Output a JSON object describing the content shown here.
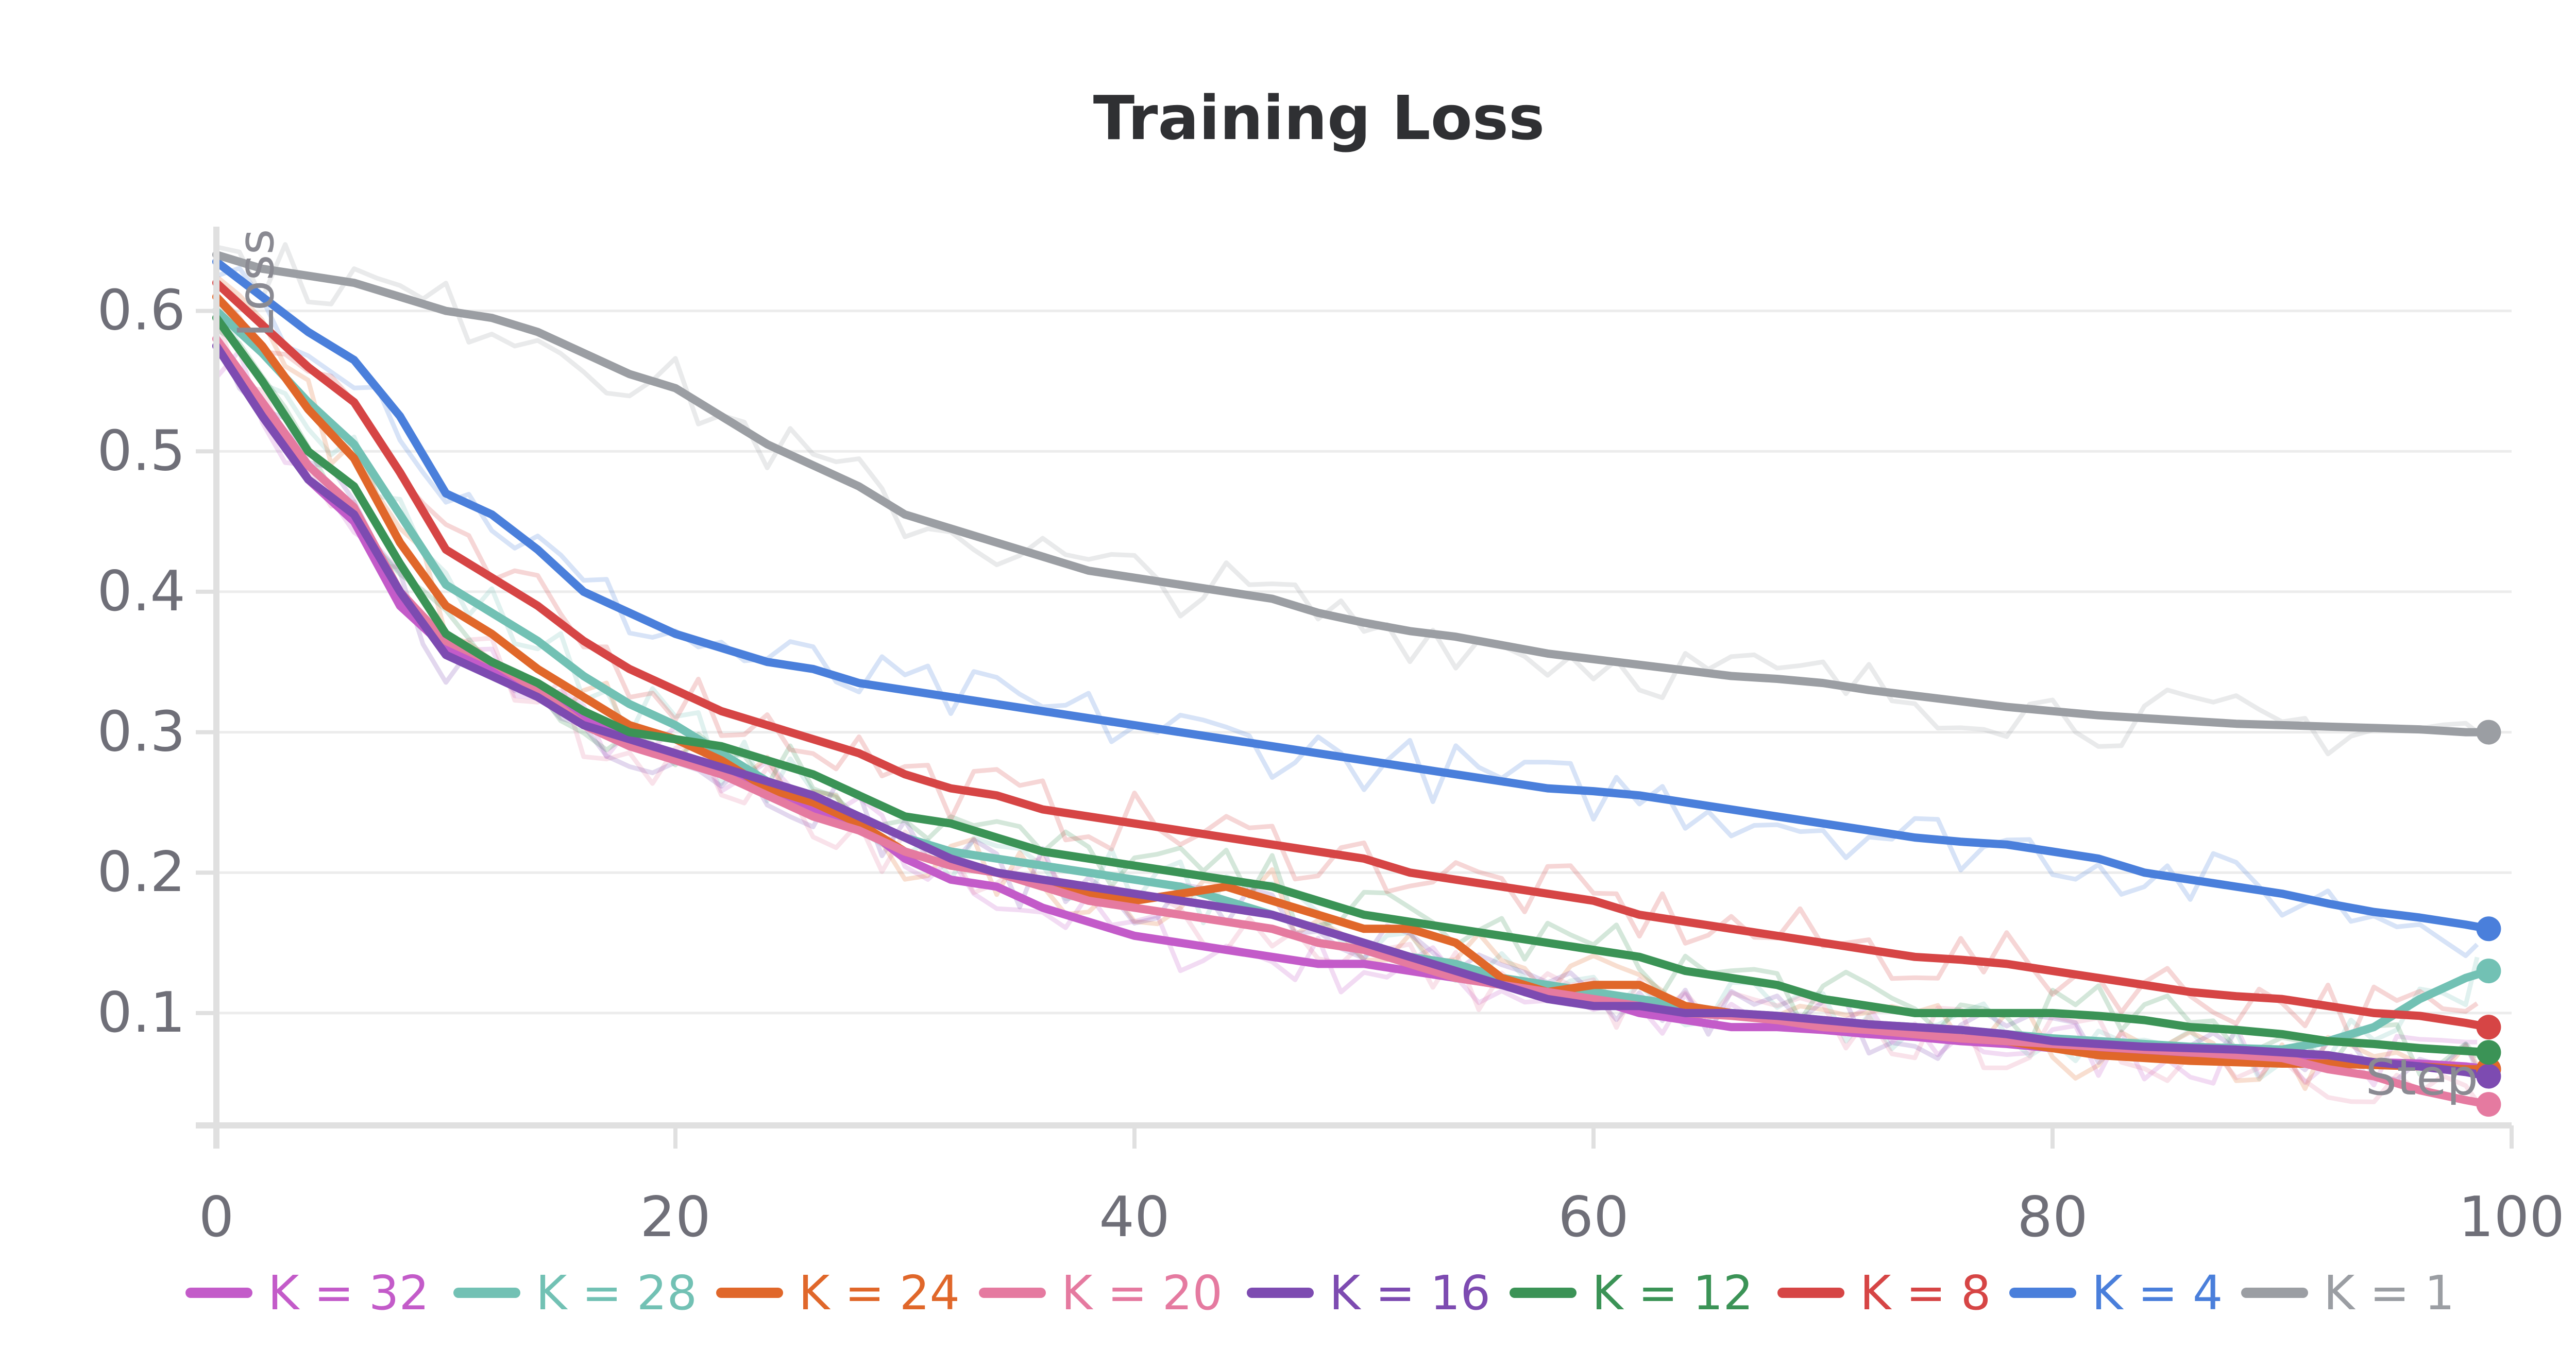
{
  "chart_data": {
    "type": "line",
    "title": "Training Loss",
    "xlabel": "Step",
    "ylabel": "Loss",
    "xlim": [
      0,
      100
    ],
    "ylim": [
      0.02,
      0.66
    ],
    "xticks": [
      0,
      20,
      40,
      60,
      80,
      100
    ],
    "yticks": [
      0.1,
      0.2,
      0.3,
      0.4,
      0.5,
      0.6
    ],
    "grid": true,
    "legend_position": "bottom",
    "series": [
      {
        "name": "K = 32",
        "color": "#c35bc9",
        "x": [
          0,
          2,
          4,
          6,
          8,
          10,
          12,
          14,
          16,
          18,
          20,
          22,
          24,
          26,
          28,
          30,
          32,
          34,
          36,
          38,
          40,
          42,
          44,
          46,
          48,
          50,
          52,
          54,
          56,
          58,
          60,
          62,
          64,
          66,
          68,
          70,
          72,
          74,
          76,
          78,
          80,
          82,
          84,
          86,
          88,
          90,
          92,
          94,
          96,
          98,
          99
        ],
        "y": [
          0.575,
          0.53,
          0.48,
          0.45,
          0.39,
          0.36,
          0.345,
          0.33,
          0.31,
          0.295,
          0.285,
          0.275,
          0.26,
          0.245,
          0.235,
          0.21,
          0.195,
          0.19,
          0.175,
          0.165,
          0.155,
          0.15,
          0.145,
          0.14,
          0.135,
          0.135,
          0.13,
          0.125,
          0.12,
          0.115,
          0.11,
          0.1,
          0.095,
          0.09,
          0.09,
          0.088,
          0.085,
          0.083,
          0.08,
          0.078,
          0.075,
          0.073,
          0.072,
          0.07,
          0.068,
          0.067,
          0.066,
          0.065,
          0.064,
          0.062,
          0.06
        ]
      },
      {
        "name": "K = 28",
        "color": "#72c1b4",
        "x": [
          0,
          2,
          4,
          6,
          8,
          10,
          12,
          14,
          16,
          18,
          20,
          22,
          24,
          26,
          28,
          30,
          32,
          34,
          36,
          38,
          40,
          42,
          44,
          46,
          48,
          50,
          52,
          54,
          56,
          58,
          60,
          62,
          64,
          66,
          68,
          70,
          72,
          74,
          76,
          78,
          80,
          82,
          84,
          86,
          88,
          90,
          92,
          94,
          96,
          98,
          99
        ],
        "y": [
          0.6,
          0.57,
          0.535,
          0.505,
          0.455,
          0.405,
          0.385,
          0.365,
          0.34,
          0.32,
          0.305,
          0.285,
          0.265,
          0.255,
          0.24,
          0.225,
          0.215,
          0.21,
          0.205,
          0.2,
          0.195,
          0.19,
          0.18,
          0.17,
          0.16,
          0.15,
          0.14,
          0.135,
          0.125,
          0.12,
          0.115,
          0.11,
          0.105,
          0.1,
          0.098,
          0.095,
          0.092,
          0.09,
          0.088,
          0.085,
          0.082,
          0.08,
          0.078,
          0.076,
          0.075,
          0.074,
          0.08,
          0.09,
          0.11,
          0.125,
          0.13
        ]
      },
      {
        "name": "K = 24",
        "color": "#e0672a",
        "x": [
          0,
          2,
          4,
          6,
          8,
          10,
          12,
          14,
          16,
          18,
          20,
          22,
          24,
          26,
          28,
          30,
          32,
          34,
          36,
          38,
          40,
          42,
          44,
          46,
          48,
          50,
          52,
          54,
          56,
          58,
          60,
          62,
          64,
          66,
          68,
          70,
          72,
          74,
          76,
          78,
          80,
          82,
          84,
          86,
          88,
          90,
          92,
          94,
          96,
          98,
          99
        ],
        "y": [
          0.61,
          0.575,
          0.53,
          0.495,
          0.435,
          0.39,
          0.37,
          0.345,
          0.325,
          0.305,
          0.295,
          0.28,
          0.26,
          0.25,
          0.235,
          0.215,
          0.205,
          0.2,
          0.19,
          0.185,
          0.18,
          0.185,
          0.19,
          0.18,
          0.17,
          0.16,
          0.16,
          0.15,
          0.125,
          0.115,
          0.12,
          0.12,
          0.105,
          0.1,
          0.095,
          0.095,
          0.09,
          0.085,
          0.082,
          0.08,
          0.075,
          0.07,
          0.068,
          0.066,
          0.065,
          0.064,
          0.064,
          0.063,
          0.062,
          0.06,
          0.06
        ]
      },
      {
        "name": "K = 20",
        "color": "#e57aa0",
        "x": [
          0,
          2,
          4,
          6,
          8,
          10,
          12,
          14,
          16,
          18,
          20,
          22,
          24,
          26,
          28,
          30,
          32,
          34,
          36,
          38,
          40,
          42,
          44,
          46,
          48,
          50,
          52,
          54,
          56,
          58,
          60,
          62,
          64,
          66,
          68,
          70,
          72,
          74,
          76,
          78,
          80,
          82,
          84,
          86,
          88,
          90,
          92,
          94,
          96,
          98,
          99
        ],
        "y": [
          0.58,
          0.535,
          0.49,
          0.46,
          0.4,
          0.365,
          0.35,
          0.33,
          0.305,
          0.29,
          0.28,
          0.27,
          0.255,
          0.24,
          0.23,
          0.215,
          0.205,
          0.2,
          0.19,
          0.18,
          0.175,
          0.17,
          0.165,
          0.16,
          0.15,
          0.145,
          0.135,
          0.125,
          0.12,
          0.115,
          0.11,
          0.105,
          0.1,
          0.098,
          0.095,
          0.09,
          0.088,
          0.085,
          0.082,
          0.08,
          0.078,
          0.076,
          0.074,
          0.072,
          0.07,
          0.068,
          0.06,
          0.055,
          0.045,
          0.038,
          0.035
        ]
      },
      {
        "name": "K = 16",
        "color": "#7d4bb1",
        "x": [
          0,
          2,
          4,
          6,
          8,
          10,
          12,
          14,
          16,
          18,
          20,
          22,
          24,
          26,
          28,
          30,
          32,
          34,
          36,
          38,
          40,
          42,
          44,
          46,
          48,
          50,
          52,
          54,
          56,
          58,
          60,
          62,
          64,
          66,
          68,
          70,
          72,
          74,
          76,
          78,
          80,
          82,
          84,
          86,
          88,
          90,
          92,
          94,
          96,
          98,
          99
        ],
        "y": [
          0.575,
          0.525,
          0.48,
          0.455,
          0.4,
          0.355,
          0.34,
          0.325,
          0.305,
          0.295,
          0.285,
          0.275,
          0.265,
          0.255,
          0.24,
          0.225,
          0.21,
          0.2,
          0.195,
          0.19,
          0.185,
          0.18,
          0.175,
          0.17,
          0.16,
          0.15,
          0.14,
          0.13,
          0.12,
          0.11,
          0.105,
          0.105,
          0.1,
          0.1,
          0.098,
          0.095,
          0.092,
          0.09,
          0.088,
          0.085,
          0.08,
          0.078,
          0.076,
          0.075,
          0.074,
          0.072,
          0.07,
          0.065,
          0.062,
          0.058,
          0.055
        ]
      },
      {
        "name": "K = 12",
        "color": "#3b9356",
        "x": [
          0,
          2,
          4,
          6,
          8,
          10,
          12,
          14,
          16,
          18,
          20,
          22,
          24,
          26,
          28,
          30,
          32,
          34,
          36,
          38,
          40,
          42,
          44,
          46,
          48,
          50,
          52,
          54,
          56,
          58,
          60,
          62,
          64,
          66,
          68,
          70,
          72,
          74,
          76,
          78,
          80,
          82,
          84,
          86,
          88,
          90,
          92,
          94,
          96,
          98,
          99
        ],
        "y": [
          0.595,
          0.55,
          0.5,
          0.475,
          0.42,
          0.37,
          0.35,
          0.335,
          0.315,
          0.3,
          0.295,
          0.29,
          0.28,
          0.27,
          0.255,
          0.24,
          0.235,
          0.225,
          0.215,
          0.21,
          0.205,
          0.2,
          0.195,
          0.19,
          0.18,
          0.17,
          0.165,
          0.16,
          0.155,
          0.15,
          0.145,
          0.14,
          0.13,
          0.125,
          0.12,
          0.11,
          0.105,
          0.1,
          0.1,
          0.1,
          0.1,
          0.098,
          0.095,
          0.09,
          0.088,
          0.085,
          0.08,
          0.078,
          0.075,
          0.073,
          0.072
        ]
      },
      {
        "name": "K = 8",
        "color": "#d64545",
        "x": [
          0,
          2,
          4,
          6,
          8,
          10,
          12,
          14,
          16,
          18,
          20,
          22,
          24,
          26,
          28,
          30,
          32,
          34,
          36,
          38,
          40,
          42,
          44,
          46,
          48,
          50,
          52,
          54,
          56,
          58,
          60,
          62,
          64,
          66,
          68,
          70,
          72,
          74,
          76,
          78,
          80,
          82,
          84,
          86,
          88,
          90,
          92,
          94,
          96,
          98,
          99
        ],
        "y": [
          0.62,
          0.59,
          0.56,
          0.535,
          0.485,
          0.43,
          0.41,
          0.39,
          0.365,
          0.345,
          0.33,
          0.315,
          0.305,
          0.295,
          0.285,
          0.27,
          0.26,
          0.255,
          0.245,
          0.24,
          0.235,
          0.23,
          0.225,
          0.22,
          0.215,
          0.21,
          0.2,
          0.195,
          0.19,
          0.185,
          0.18,
          0.17,
          0.165,
          0.16,
          0.155,
          0.15,
          0.145,
          0.14,
          0.138,
          0.135,
          0.13,
          0.125,
          0.12,
          0.115,
          0.112,
          0.11,
          0.105,
          0.1,
          0.098,
          0.093,
          0.09
        ]
      },
      {
        "name": "K = 4",
        "color": "#4a7fdb",
        "x": [
          0,
          2,
          4,
          6,
          8,
          10,
          12,
          14,
          16,
          18,
          20,
          22,
          24,
          26,
          28,
          30,
          32,
          34,
          36,
          38,
          40,
          42,
          44,
          46,
          48,
          50,
          52,
          54,
          56,
          58,
          60,
          62,
          64,
          66,
          68,
          70,
          72,
          74,
          76,
          78,
          80,
          82,
          84,
          86,
          88,
          90,
          92,
          94,
          96,
          98,
          99
        ],
        "y": [
          0.635,
          0.61,
          0.585,
          0.565,
          0.525,
          0.47,
          0.455,
          0.43,
          0.4,
          0.385,
          0.37,
          0.36,
          0.35,
          0.345,
          0.335,
          0.33,
          0.325,
          0.32,
          0.315,
          0.31,
          0.305,
          0.3,
          0.295,
          0.29,
          0.285,
          0.28,
          0.275,
          0.27,
          0.265,
          0.26,
          0.258,
          0.255,
          0.25,
          0.245,
          0.24,
          0.235,
          0.23,
          0.225,
          0.222,
          0.22,
          0.215,
          0.21,
          0.2,
          0.195,
          0.19,
          0.185,
          0.178,
          0.172,
          0.168,
          0.163,
          0.16
        ]
      },
      {
        "name": "K = 1",
        "color": "#9b9ea3",
        "x": [
          0,
          2,
          4,
          6,
          8,
          10,
          12,
          14,
          16,
          18,
          20,
          22,
          24,
          26,
          28,
          30,
          32,
          34,
          36,
          38,
          40,
          42,
          44,
          46,
          48,
          50,
          52,
          54,
          56,
          58,
          60,
          62,
          64,
          66,
          68,
          70,
          72,
          74,
          76,
          78,
          80,
          82,
          84,
          86,
          88,
          90,
          92,
          94,
          96,
          98,
          99
        ],
        "y": [
          0.64,
          0.63,
          0.625,
          0.62,
          0.61,
          0.6,
          0.595,
          0.585,
          0.57,
          0.555,
          0.545,
          0.525,
          0.505,
          0.49,
          0.475,
          0.455,
          0.445,
          0.435,
          0.425,
          0.415,
          0.41,
          0.405,
          0.4,
          0.395,
          0.385,
          0.378,
          0.372,
          0.368,
          0.362,
          0.356,
          0.352,
          0.348,
          0.344,
          0.34,
          0.338,
          0.335,
          0.33,
          0.326,
          0.322,
          0.318,
          0.315,
          0.312,
          0.31,
          0.308,
          0.306,
          0.305,
          0.304,
          0.303,
          0.302,
          0.3,
          0.3
        ]
      }
    ]
  }
}
